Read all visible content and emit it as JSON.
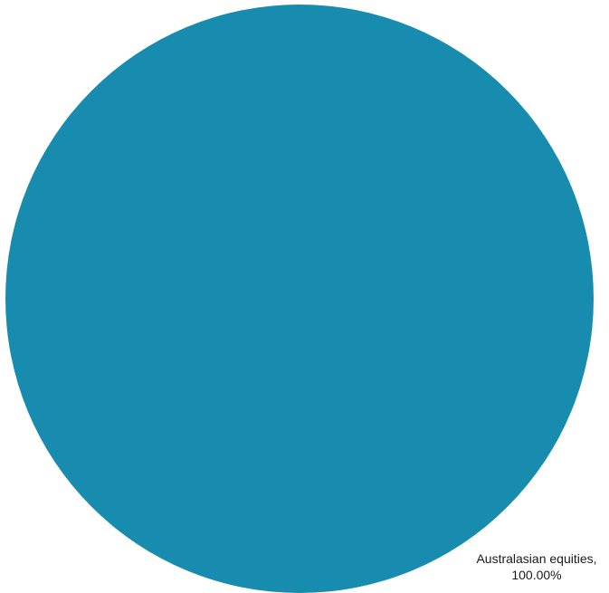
{
  "chart_data": {
    "type": "pie",
    "title": "",
    "slices": [
      {
        "label": "Australasian equities",
        "value": 100.0,
        "display_percent": "100.00%",
        "color": "#178caf"
      }
    ],
    "legend": "none",
    "label_placement": "bottom-right"
  }
}
